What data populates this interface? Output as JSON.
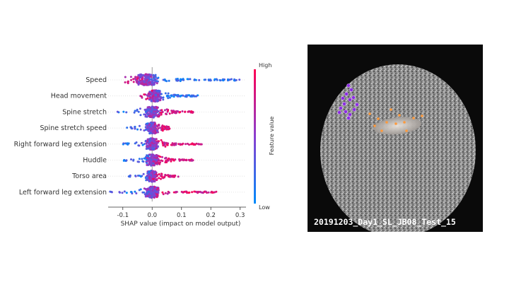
{
  "chart_data": {
    "type": "scatter",
    "subtype": "shap-beeswarm",
    "features": [
      "Speed",
      "Head movement",
      "Spine stretch",
      "Spine stretch speed",
      "Right forward leg extension",
      "Huddle",
      "Torso area",
      "Left forward leg extension"
    ],
    "feature_shap_ranges": [
      {
        "name": "Speed",
        "min": -0.1,
        "max": 0.3,
        "center": -0.02
      },
      {
        "name": "Head movement",
        "min": -0.04,
        "max": 0.16,
        "center": 0.01
      },
      {
        "name": "Spine stretch",
        "min": -0.12,
        "max": 0.14,
        "center": 0.0
      },
      {
        "name": "Spine stretch speed",
        "min": -0.09,
        "max": 0.06,
        "center": 0.0
      },
      {
        "name": "Right forward leg extension",
        "min": -0.1,
        "max": 0.17,
        "center": 0.0
      },
      {
        "name": "Huddle",
        "min": -0.1,
        "max": 0.14,
        "center": 0.0
      },
      {
        "name": "Torso area",
        "min": -0.09,
        "max": 0.09,
        "center": 0.0
      },
      {
        "name": "Left forward leg extension",
        "min": -0.15,
        "max": 0.22,
        "center": 0.0
      }
    ],
    "xlabel": "SHAP value (impact on model output)",
    "xlim": [
      -0.15,
      0.32
    ],
    "xticks": [
      "-0.1",
      "0.0",
      "0.1",
      "0.2",
      "0.3"
    ],
    "xtick_values": [
      -0.1,
      0.0,
      0.1,
      0.2,
      0.3
    ],
    "colorbar": {
      "label": "Feature value",
      "high": "High",
      "low": "Low",
      "color_high": "#ff0052",
      "color_low": "#008bfb"
    }
  },
  "video": {
    "caption": "20191203_Day1_SL_JB08_Test_15"
  }
}
